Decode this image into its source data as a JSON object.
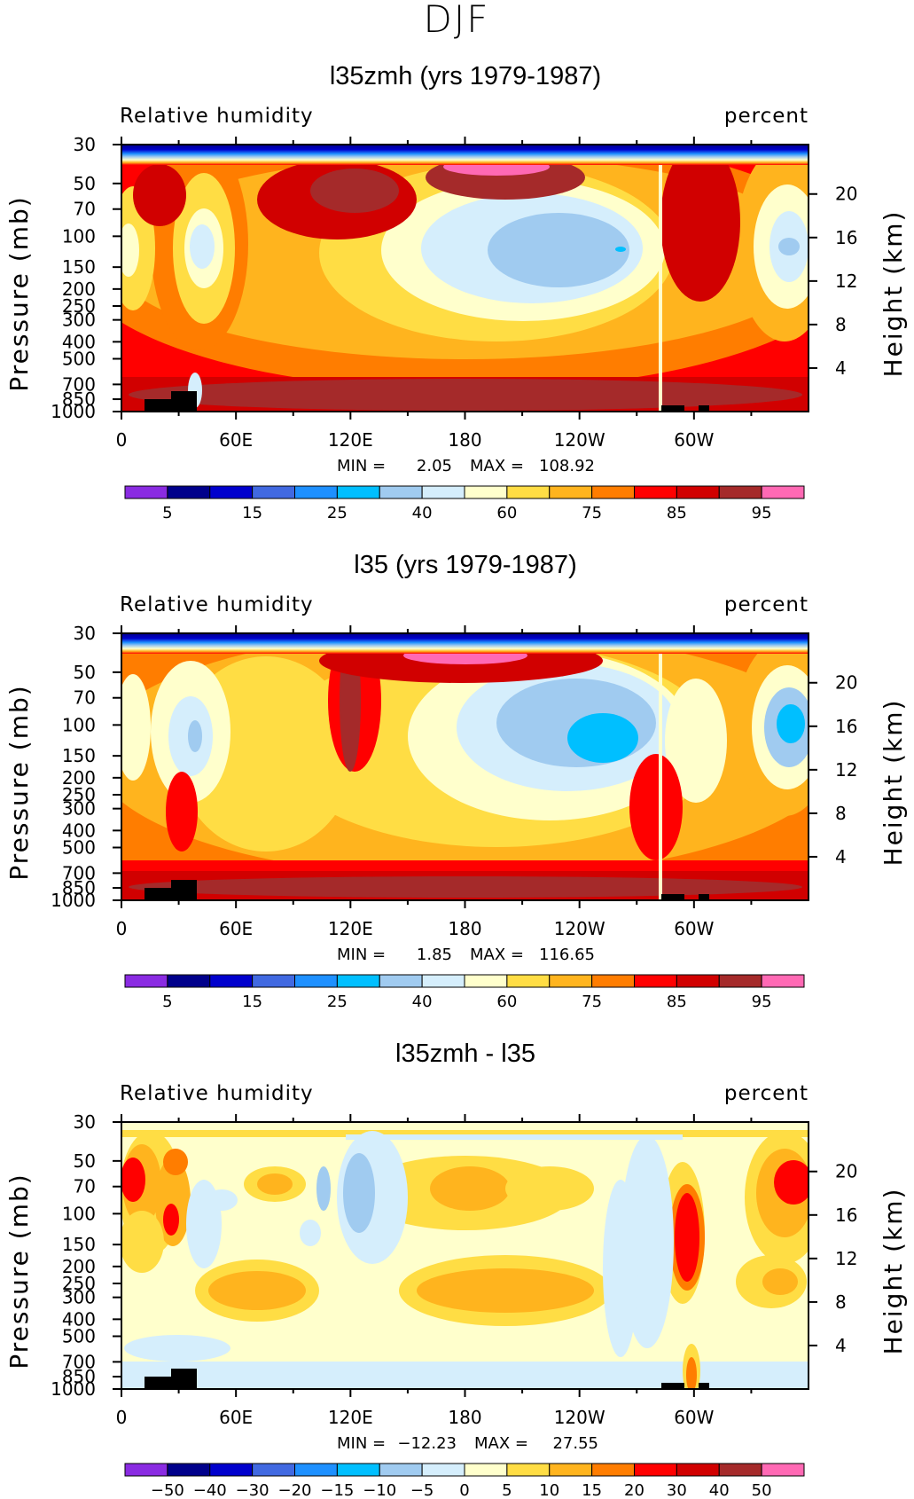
{
  "title": "DJF",
  "chart_data": [
    {
      "type": "heatmap",
      "title": "l35zmh (yrs 1979-1987)",
      "field_label": "Relative humidity",
      "units_label": "percent",
      "ylabel": "Pressure (mb)",
      "ylabel_right": "Height (km)",
      "x_ticks": [
        "0",
        "60E",
        "120E",
        "180",
        "120W",
        "60W"
      ],
      "y_ticks": [
        "30",
        "50",
        "70",
        "100",
        "150",
        "200",
        "250",
        "300",
        "400",
        "500",
        "700",
        "850",
        "1000"
      ],
      "y_ticks_right": [
        "20",
        "16",
        "12",
        "8",
        "4"
      ],
      "min_label": "MIN =",
      "min_value": "2.05",
      "max_label": "MAX =",
      "max_value": "108.92",
      "colorbar_labels": [
        "5",
        "15",
        "25",
        "40",
        "60",
        "75",
        "85",
        "95"
      ],
      "colorbar_colors": [
        "#8a2be2",
        "#00008b",
        "#0000cd",
        "#4169e1",
        "#1e90ff",
        "#00bfff",
        "#a0cbf0",
        "#d5eefc",
        "#ffffcc",
        "#ffdd44",
        "#ffb41e",
        "#ff7d00",
        "#ff0000",
        "#d10000",
        "#a52a2a",
        "#ff69b4"
      ]
    },
    {
      "type": "heatmap",
      "title": "l35 (yrs 1979-1987)",
      "field_label": "Relative humidity",
      "units_label": "percent",
      "ylabel": "Pressure (mb)",
      "ylabel_right": "Height (km)",
      "x_ticks": [
        "0",
        "60E",
        "120E",
        "180",
        "120W",
        "60W"
      ],
      "y_ticks": [
        "30",
        "50",
        "70",
        "100",
        "150",
        "200",
        "250",
        "300",
        "400",
        "500",
        "700",
        "850",
        "1000"
      ],
      "y_ticks_right": [
        "20",
        "16",
        "12",
        "8",
        "4"
      ],
      "min_label": "MIN =",
      "min_value": "1.85",
      "max_label": "MAX =",
      "max_value": "116.65",
      "colorbar_labels": [
        "5",
        "15",
        "25",
        "40",
        "60",
        "75",
        "85",
        "95"
      ],
      "colorbar_colors": [
        "#8a2be2",
        "#00008b",
        "#0000cd",
        "#4169e1",
        "#1e90ff",
        "#00bfff",
        "#a0cbf0",
        "#d5eefc",
        "#ffffcc",
        "#ffdd44",
        "#ffb41e",
        "#ff7d00",
        "#ff0000",
        "#d10000",
        "#a52a2a",
        "#ff69b4"
      ]
    },
    {
      "type": "heatmap",
      "title": "l35zmh - l35",
      "field_label": "Relative humidity",
      "units_label": "percent",
      "ylabel": "Pressure (mb)",
      "ylabel_right": "Height (km)",
      "x_ticks": [
        "0",
        "60E",
        "120E",
        "180",
        "120W",
        "60W"
      ],
      "y_ticks": [
        "30",
        "50",
        "70",
        "100",
        "150",
        "200",
        "250",
        "300",
        "400",
        "500",
        "700",
        "850",
        "1000"
      ],
      "y_ticks_right": [
        "20",
        "16",
        "12",
        "8",
        "4"
      ],
      "min_label": "MIN =",
      "min_value": "−12.23",
      "max_label": "MAX =",
      "max_value": "27.55",
      "colorbar_labels": [
        "−50",
        "−40",
        "−30",
        "−20",
        "−15",
        "−10",
        "−5",
        "0",
        "5",
        "10",
        "15",
        "20",
        "30",
        "40",
        "50"
      ],
      "colorbar_colors": [
        "#8a2be2",
        "#00008b",
        "#0000cd",
        "#4169e1",
        "#1e90ff",
        "#00bfff",
        "#a0cbf0",
        "#d5eefc",
        "#ffffcc",
        "#ffdd44",
        "#ffb41e",
        "#ff7d00",
        "#ff0000",
        "#d10000",
        "#a52a2a",
        "#ff69b4"
      ]
    }
  ]
}
